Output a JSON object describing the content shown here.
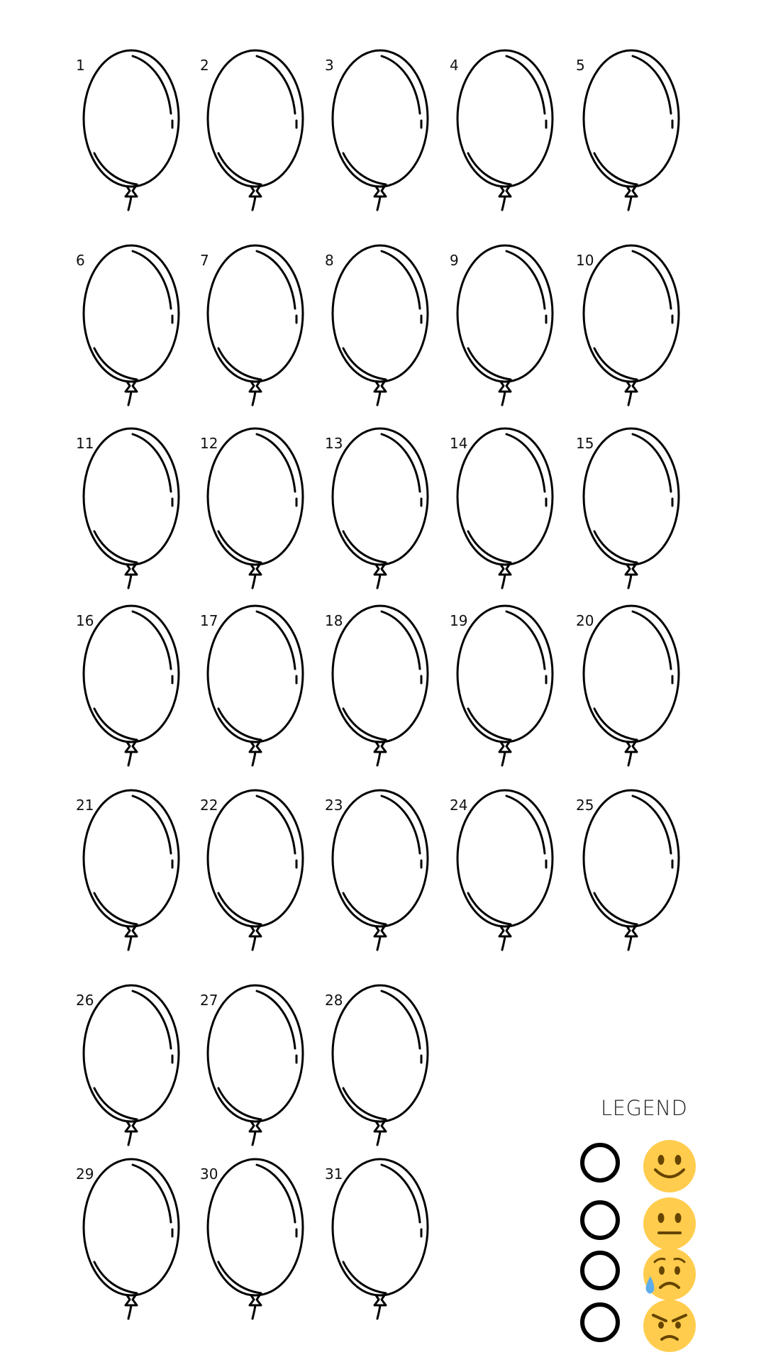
{
  "balloons": [
    {
      "number": "1"
    },
    {
      "number": "2"
    },
    {
      "number": "3"
    },
    {
      "number": "4"
    },
    {
      "number": "5"
    },
    {
      "number": "6"
    },
    {
      "number": "7"
    },
    {
      "number": "8"
    },
    {
      "number": "9"
    },
    {
      "number": "10"
    },
    {
      "number": "11"
    },
    {
      "number": "12"
    },
    {
      "number": "13"
    },
    {
      "number": "14"
    },
    {
      "number": "15"
    },
    {
      "number": "16"
    },
    {
      "number": "17"
    },
    {
      "number": "18"
    },
    {
      "number": "19"
    },
    {
      "number": "20"
    },
    {
      "number": "21"
    },
    {
      "number": "22"
    },
    {
      "number": "23"
    },
    {
      "number": "24"
    },
    {
      "number": "25"
    },
    {
      "number": "26"
    },
    {
      "number": "27"
    },
    {
      "number": "28"
    },
    {
      "number": "29"
    },
    {
      "number": "30"
    },
    {
      "number": "31"
    }
  ],
  "legend": {
    "title": "LEGEND",
    "rows": [
      {
        "emoji": "happy-face-icon"
      },
      {
        "emoji": "neutral-face-icon"
      },
      {
        "emoji": "anxious-sweat-face-icon"
      },
      {
        "emoji": "angry-face-icon"
      }
    ]
  },
  "colors": {
    "emoji_yellow": "#FFCC4D",
    "emoji_features": "#664500",
    "sweat_drop": "#5DADEC",
    "outline": "#000000"
  }
}
